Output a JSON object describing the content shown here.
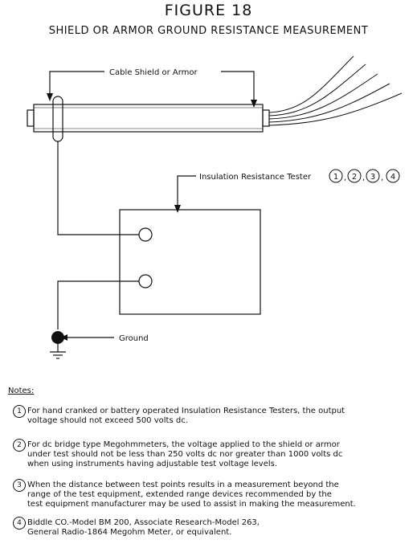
{
  "figure": {
    "title": "FIGURE 18",
    "subtitle": "SHIELD OR ARMOR GROUND RESISTANCE MEASUREMENT"
  },
  "diagram": {
    "cable_label": "Cable Shield or Armor",
    "tester_label": "Insulation Resistance Tester",
    "tester_refs": [
      "1",
      "2",
      "3",
      "4"
    ],
    "tester_ref_separator": ",",
    "ground_label": "Ground"
  },
  "notes": {
    "heading": "Notes:",
    "items": [
      {
        "num": "1",
        "text": "For hand cranked or battery operated Insulation Resistance Testers, the output\nvoltage should not exceed 500 volts dc."
      },
      {
        "num": "2",
        "text": "For dc bridge type Megohmmeters, the voltage applied to the shield or armor\nunder test should not be less than 250 volts dc nor greater than 1000 volts dc\nwhen using instruments having adjustable test voltage levels."
      },
      {
        "num": "3",
        "text": "When the distance between test points results in a measurement beyond the\nrange of the test equipment, extended range devices recommended by the\ntest equipment manufacturer may be used to assist in making the measurement."
      },
      {
        "num": "4",
        "text": "Biddle CO.-Model BM 200, Associate Research-Model 263,\nGeneral Radio-1864 Megohm Meter, or equivalent."
      }
    ]
  }
}
